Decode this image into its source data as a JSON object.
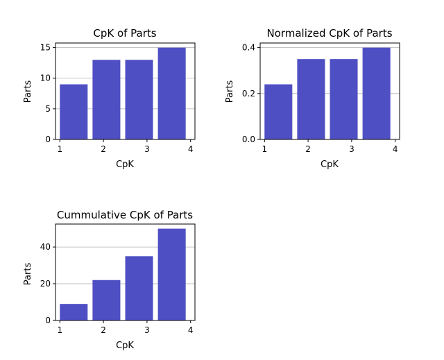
{
  "colors": {
    "bar": "#4f4fc4",
    "grid": "#b0b0b0",
    "axis": "#000000"
  },
  "chart_data": [
    {
      "type": "bar",
      "title": "CpK of Parts",
      "xlabel": "CpK",
      "ylabel": "Parts",
      "xlim": [
        0.9,
        4.1
      ],
      "ylim": [
        0,
        15.75
      ],
      "x": [
        1,
        1.75,
        2.5,
        3.25
      ],
      "bar_width": 0.6375,
      "values": [
        9,
        13,
        13,
        15
      ],
      "xticks": [
        1,
        2,
        3,
        4
      ],
      "yticks": [
        0,
        5,
        10,
        15
      ],
      "ytick_labels": [
        "0",
        "5",
        "10",
        "15"
      ],
      "grid": "y"
    },
    {
      "type": "bar",
      "title": "Normalized CpK of Parts",
      "xlabel": "CpK",
      "ylabel": "Parts",
      "xlim": [
        0.9,
        4.1
      ],
      "ylim": [
        0,
        0.42
      ],
      "x": [
        1,
        1.75,
        2.5,
        3.25
      ],
      "bar_width": 0.6375,
      "values": [
        0.24,
        0.35,
        0.35,
        0.4
      ],
      "xticks": [
        1,
        2,
        3,
        4
      ],
      "yticks": [
        0,
        0.2,
        0.4
      ],
      "ytick_labels": [
        "0.0",
        "0.2",
        "0.4"
      ],
      "grid": "y"
    },
    {
      "type": "bar",
      "title": "Cummulative CpK of Parts",
      "xlabel": "CpK",
      "ylabel": "Parts",
      "xlim": [
        0.9,
        4.1
      ],
      "ylim": [
        0,
        52.5
      ],
      "x": [
        1,
        1.75,
        2.5,
        3.25
      ],
      "bar_width": 0.6375,
      "values": [
        9,
        22,
        35,
        50
      ],
      "xticks": [
        1,
        2,
        3,
        4
      ],
      "yticks": [
        0,
        20,
        40
      ],
      "ytick_labels": [
        "0",
        "20",
        "40"
      ],
      "grid": "y"
    }
  ]
}
